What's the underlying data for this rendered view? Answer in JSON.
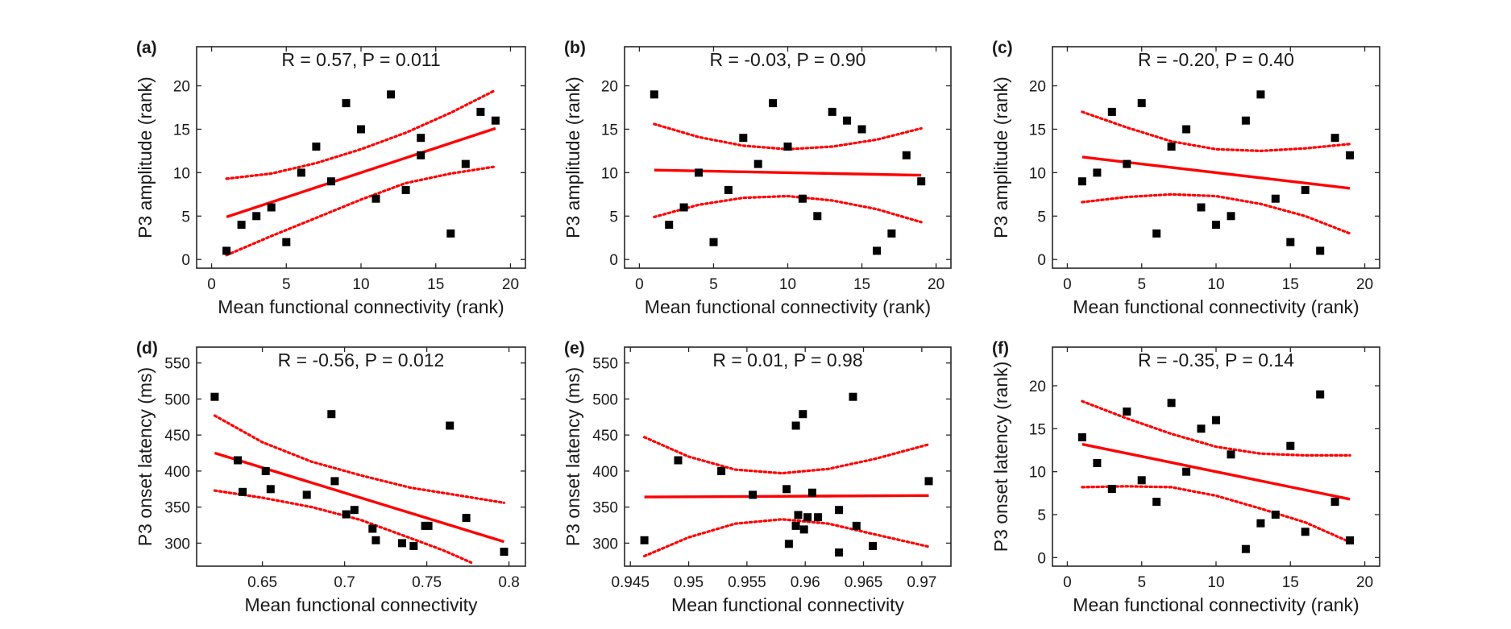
{
  "figure": {
    "colors": {
      "fit": "#ff0000",
      "ci": "#ff0000",
      "points": "#000000",
      "axes": "#262626"
    }
  },
  "chart_data": [
    {
      "id": "a",
      "panel_label": "(a)",
      "type": "scatter",
      "title": "R = 0.57, P = 0.011",
      "xlabel": "Mean functional connectivity (rank)",
      "ylabel": "P3 amplitude (rank)",
      "xlim": [
        -1,
        21
      ],
      "ylim": [
        -1,
        24.5
      ],
      "xticks": [
        0,
        5,
        10,
        15,
        20
      ],
      "xtick_labels": [
        "0",
        "5",
        "10",
        "15",
        "20"
      ],
      "yticks": [
        0,
        5,
        10,
        15,
        20
      ],
      "ytick_labels": [
        "0",
        "5",
        "10",
        "15",
        "20"
      ],
      "points": {
        "x": [
          1,
          2,
          3,
          4,
          5,
          6,
          7,
          8,
          9,
          10,
          11,
          12,
          13,
          14,
          14,
          16,
          17,
          18,
          19
        ],
        "y": [
          1,
          4,
          5,
          6,
          2,
          10,
          13,
          9,
          18,
          15,
          7,
          19,
          8,
          14,
          12,
          3,
          11,
          17,
          16
        ]
      },
      "fit": {
        "x": [
          1,
          19
        ],
        "y": [
          4.9,
          15.1
        ]
      },
      "ci_upper": {
        "x": [
          1,
          4,
          7,
          10,
          13,
          16,
          19
        ],
        "y": [
          9.3,
          9.9,
          11.1,
          12.7,
          14.6,
          16.9,
          19.5
        ]
      },
      "ci_lower": {
        "x": [
          1,
          4,
          7,
          10,
          13,
          16,
          19
        ],
        "y": [
          0.5,
          2.7,
          4.8,
          6.9,
          8.8,
          9.9,
          10.7
        ]
      }
    },
    {
      "id": "b",
      "panel_label": "(b)",
      "type": "scatter",
      "title": "R = -0.03, P = 0.90",
      "xlabel": "Mean functional connectivity (rank)",
      "ylabel": "P3 amplitude (rank)",
      "xlim": [
        -1,
        21
      ],
      "ylim": [
        -1,
        24.5
      ],
      "xticks": [
        0,
        5,
        10,
        15,
        20
      ],
      "xtick_labels": [
        "0",
        "5",
        "10",
        "15",
        "20"
      ],
      "yticks": [
        0,
        5,
        10,
        15,
        20
      ],
      "ytick_labels": [
        "0",
        "5",
        "10",
        "15",
        "20"
      ],
      "points": {
        "x": [
          1,
          2,
          3,
          4,
          5,
          6,
          7,
          8,
          9,
          10,
          11,
          12,
          13,
          14,
          15,
          16,
          17,
          18,
          19
        ],
        "y": [
          19,
          4,
          6,
          10,
          2,
          8,
          14,
          11,
          18,
          13,
          7,
          5,
          17,
          16,
          15,
          1,
          3,
          12,
          9
        ]
      },
      "fit": {
        "x": [
          1,
          19
        ],
        "y": [
          10.3,
          9.7
        ]
      },
      "ci_upper": {
        "x": [
          1,
          4,
          7,
          10,
          13,
          16,
          19
        ],
        "y": [
          15.6,
          14.1,
          13.1,
          12.7,
          13.0,
          13.8,
          15.1
        ]
      },
      "ci_lower": {
        "x": [
          1,
          4,
          7,
          10,
          13,
          16,
          19
        ],
        "y": [
          4.9,
          6.3,
          7.1,
          7.3,
          6.8,
          5.8,
          4.3
        ]
      }
    },
    {
      "id": "c",
      "panel_label": "(c)",
      "type": "scatter",
      "title": "R = -0.20, P = 0.40",
      "xlabel": "Mean functional connectivity (rank)",
      "ylabel": "P3 amplitude (rank)",
      "xlim": [
        -1,
        21
      ],
      "ylim": [
        -1,
        24.5
      ],
      "xticks": [
        0,
        5,
        10,
        15,
        20
      ],
      "xtick_labels": [
        "0",
        "5",
        "10",
        "15",
        "20"
      ],
      "yticks": [
        0,
        5,
        10,
        15,
        20
      ],
      "ytick_labels": [
        "0",
        "5",
        "10",
        "15",
        "20"
      ],
      "points": {
        "x": [
          1,
          2,
          3,
          4,
          5,
          6,
          7,
          8,
          9,
          10,
          11,
          12,
          13,
          14,
          15,
          16,
          17,
          18,
          19
        ],
        "y": [
          9,
          10,
          17,
          11,
          18,
          3,
          13,
          15,
          6,
          4,
          5,
          16,
          19,
          7,
          2,
          8,
          1,
          14,
          12
        ]
      },
      "fit": {
        "x": [
          1,
          19
        ],
        "y": [
          11.8,
          8.2
        ]
      },
      "ci_upper": {
        "x": [
          1,
          4,
          7,
          10,
          13,
          16,
          19
        ],
        "y": [
          17.0,
          15.2,
          13.6,
          12.7,
          12.5,
          12.8,
          13.3
        ]
      },
      "ci_lower": {
        "x": [
          1,
          4,
          7,
          10,
          13,
          16,
          19
        ],
        "y": [
          6.6,
          7.2,
          7.5,
          7.3,
          6.4,
          5.0,
          3.0
        ]
      }
    },
    {
      "id": "d",
      "panel_label": "(d)",
      "type": "scatter",
      "title": "R = -0.56, P = 0.012",
      "xlabel": "Mean functional connectivity",
      "ylabel": "P3 onset latency (ms)",
      "xlim": [
        0.61,
        0.81
      ],
      "ylim": [
        268,
        572
      ],
      "xticks": [
        0.65,
        0.7,
        0.75,
        0.8
      ],
      "xtick_labels": [
        "0.65",
        "0.7",
        "0.75",
        "0.8"
      ],
      "yticks": [
        300,
        350,
        400,
        450,
        500,
        550
      ],
      "ytick_labels": [
        "300",
        "350",
        "400",
        "450",
        "500",
        "550"
      ],
      "points": {
        "x": [
          0.621,
          0.635,
          0.638,
          0.652,
          0.655,
          0.677,
          0.692,
          0.694,
          0.701,
          0.706,
          0.717,
          0.719,
          0.735,
          0.742,
          0.749,
          0.751,
          0.764,
          0.774,
          0.797
        ],
        "y": [
          503,
          415,
          371,
          400,
          375,
          367,
          479,
          386,
          340,
          346,
          320,
          304,
          300,
          296,
          324,
          324,
          463,
          335,
          288
        ]
      },
      "fit": {
        "x": [
          0.621,
          0.797
        ],
        "y": [
          425,
          302
        ]
      },
      "ci_upper": {
        "x": [
          0.621,
          0.65,
          0.68,
          0.71,
          0.74,
          0.77,
          0.797
        ],
        "y": [
          477,
          440,
          413,
          394,
          377,
          366,
          356
        ]
      },
      "ci_lower": {
        "x": [
          0.621,
          0.65,
          0.68,
          0.71,
          0.74,
          0.76,
          0.777
        ],
        "y": [
          373,
          363,
          350,
          332,
          307,
          290,
          273
        ]
      }
    },
    {
      "id": "e",
      "panel_label": "(e)",
      "type": "scatter",
      "title": "R = 0.01, P = 0.98",
      "xlabel": "Mean functional connectivity",
      "ylabel": "P3 onset latency (ms)",
      "xlim": [
        0.9445,
        0.9725
      ],
      "ylim": [
        268,
        572
      ],
      "xticks": [
        0.945,
        0.95,
        0.955,
        0.96,
        0.965,
        0.97
      ],
      "xtick_labels": [
        "0.945",
        "0.95",
        "0.955",
        "0.96",
        "0.965",
        "0.97"
      ],
      "yticks": [
        300,
        350,
        400,
        450,
        500,
        550
      ],
      "ytick_labels": [
        "300",
        "350",
        "400",
        "450",
        "500",
        "550"
      ],
      "points": {
        "x": [
          0.9462,
          0.9491,
          0.9528,
          0.9555,
          0.9584,
          0.9586,
          0.9592,
          0.9592,
          0.9594,
          0.9598,
          0.9599,
          0.9602,
          0.9606,
          0.9611,
          0.9629,
          0.9629,
          0.9641,
          0.9644,
          0.9658,
          0.9706
        ],
        "y": [
          304,
          415,
          400,
          367,
          375,
          299,
          463,
          324,
          339,
          479,
          319,
          336,
          370,
          336,
          346,
          287,
          503,
          324,
          296,
          386
        ]
      },
      "fit": {
        "x": [
          0.9462,
          0.9706
        ],
        "y": [
          364,
          366
        ]
      },
      "ci_upper": {
        "x": [
          0.9462,
          0.95,
          0.954,
          0.958,
          0.962,
          0.966,
          0.9706
        ],
        "y": [
          447,
          420,
          402,
          397,
          403,
          417,
          437
        ]
      },
      "ci_lower": {
        "x": [
          0.9462,
          0.95,
          0.954,
          0.958,
          0.962,
          0.966,
          0.9706
        ],
        "y": [
          282,
          308,
          327,
          333,
          327,
          312,
          295
        ]
      }
    },
    {
      "id": "f",
      "panel_label": "(f)",
      "type": "scatter",
      "title": "R = -0.35, P = 0.14",
      "xlabel": "Mean functional connectivity (rank)",
      "ylabel": "P3 onset latency (rank)",
      "xlim": [
        -1,
        21
      ],
      "ylim": [
        -1,
        24.5
      ],
      "xticks": [
        0,
        5,
        10,
        15,
        20
      ],
      "xtick_labels": [
        "0",
        "5",
        "10",
        "15",
        "20"
      ],
      "yticks": [
        0,
        5,
        10,
        15,
        20
      ],
      "ytick_labels": [
        "0",
        "5",
        "10",
        "15",
        "20"
      ],
      "points": {
        "x": [
          1,
          2,
          3,
          4,
          5,
          6,
          7,
          8,
          9,
          10,
          11,
          12,
          13,
          14,
          15,
          16,
          17,
          18,
          19
        ],
        "y": [
          14,
          11,
          8,
          17,
          9,
          6.5,
          18,
          10,
          15,
          16,
          12,
          1,
          4,
          5,
          13,
          3,
          19,
          6.5,
          2
        ]
      },
      "fit": {
        "x": [
          1,
          19
        ],
        "y": [
          13.2,
          6.8
        ]
      },
      "ci_upper": {
        "x": [
          1,
          4,
          7,
          10,
          13,
          16,
          19
        ],
        "y": [
          18.2,
          16.2,
          14.4,
          12.9,
          12.1,
          11.9,
          11.9
        ]
      },
      "ci_lower": {
        "x": [
          1,
          4,
          7,
          10,
          13,
          16,
          19
        ],
        "y": [
          8.2,
          8.3,
          8.2,
          7.2,
          5.7,
          4.1,
          1.8
        ]
      }
    }
  ]
}
